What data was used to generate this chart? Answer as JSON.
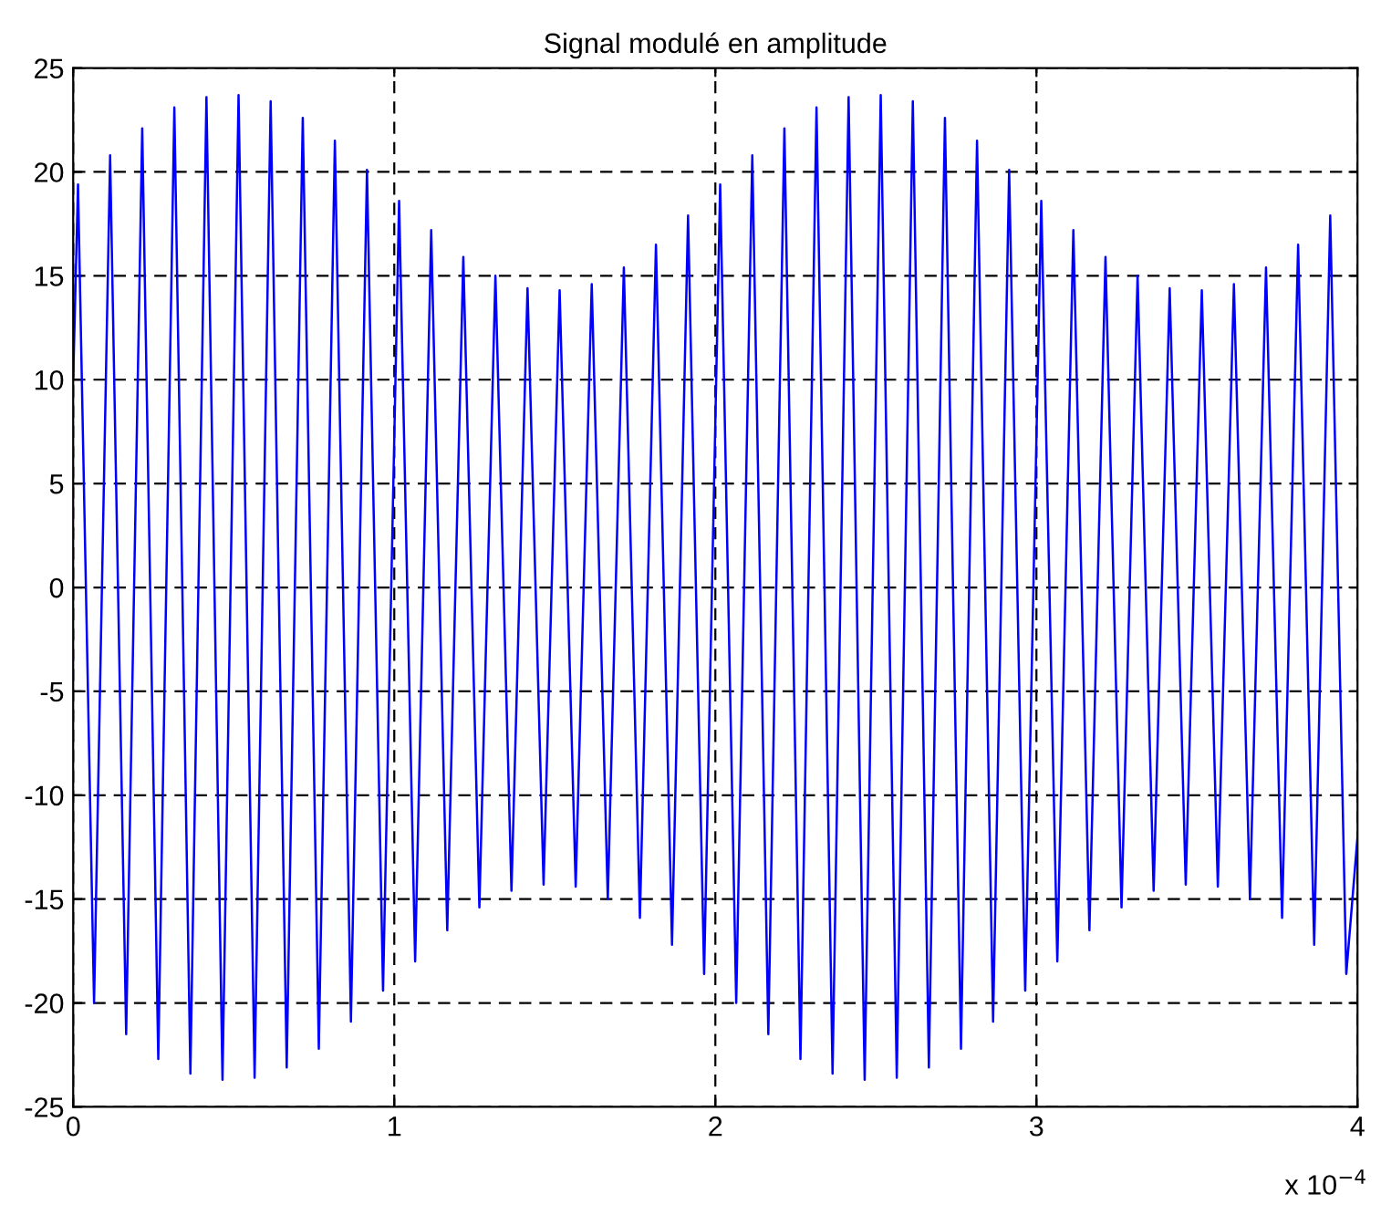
{
  "chart_data": {
    "type": "line",
    "title": "Signal modulé en amplitude",
    "x": [
      0,
      0.015,
      0.065,
      0.115,
      0.165,
      0.215,
      0.265,
      0.315,
      0.365,
      0.415,
      0.465,
      0.515,
      0.565,
      0.615,
      0.665,
      0.715,
      0.765,
      0.815,
      0.865,
      0.915,
      0.965,
      1.015,
      1.065,
      1.115,
      1.165,
      1.215,
      1.265,
      1.315,
      1.365,
      1.415,
      1.465,
      1.515,
      1.565,
      1.615,
      1.665,
      1.715,
      1.765,
      1.815,
      1.865,
      1.915,
      1.965,
      2.015,
      2.065,
      2.115,
      2.165,
      2.215,
      2.265,
      2.315,
      2.365,
      2.415,
      2.465,
      2.515,
      2.565,
      2.615,
      2.665,
      2.715,
      2.765,
      2.815,
      2.865,
      2.915,
      2.965,
      3.015,
      3.065,
      3.115,
      3.165,
      3.215,
      3.265,
      3.315,
      3.365,
      3.415,
      3.465,
      3.515,
      3.565,
      3.615,
      3.665,
      3.715,
      3.765,
      3.815,
      3.865,
      3.915,
      3.965,
      4
    ],
    "series": [
      {
        "color": "#0000ff",
        "values": [
          10,
          19.4,
          -20.0,
          20.8,
          -21.5,
          22.1,
          -22.7,
          23.1,
          -23.4,
          23.6,
          -23.7,
          23.7,
          -23.6,
          23.4,
          -23.1,
          22.6,
          -22.2,
          21.5,
          -20.9,
          20.1,
          -19.4,
          18.6,
          -18.0,
          17.2,
          -16.5,
          15.9,
          -15.4,
          15.0,
          -14.6,
          14.4,
          -14.3,
          14.3,
          -14.4,
          14.6,
          -15.0,
          15.4,
          -15.9,
          16.5,
          -17.2,
          17.9,
          -18.6,
          19.4,
          -20.0,
          20.8,
          -21.5,
          22.1,
          -22.7,
          23.1,
          -23.4,
          23.6,
          -23.7,
          23.7,
          -23.6,
          23.4,
          -23.1,
          22.6,
          -22.2,
          21.5,
          -20.9,
          20.1,
          -19.4,
          18.6,
          -18.0,
          17.2,
          -16.5,
          15.9,
          -15.4,
          15.0,
          -14.6,
          14.4,
          -14.3,
          14.3,
          -14.4,
          14.6,
          -15.0,
          15.4,
          -15.9,
          16.5,
          -17.2,
          17.9,
          -18.6,
          -12
        ]
      }
    ],
    "xlim": [
      0,
      4
    ],
    "xticks": [
      0,
      1,
      2,
      3,
      4
    ],
    "ylim": [
      -25,
      25
    ],
    "yticks": [
      -25,
      -20,
      -15,
      -10,
      -5,
      0,
      5,
      10,
      15,
      20,
      25
    ],
    "grid": true,
    "line_style": "solid",
    "marker": "none",
    "annotations": [
      "x 10$^{−4}$"
    ]
  }
}
